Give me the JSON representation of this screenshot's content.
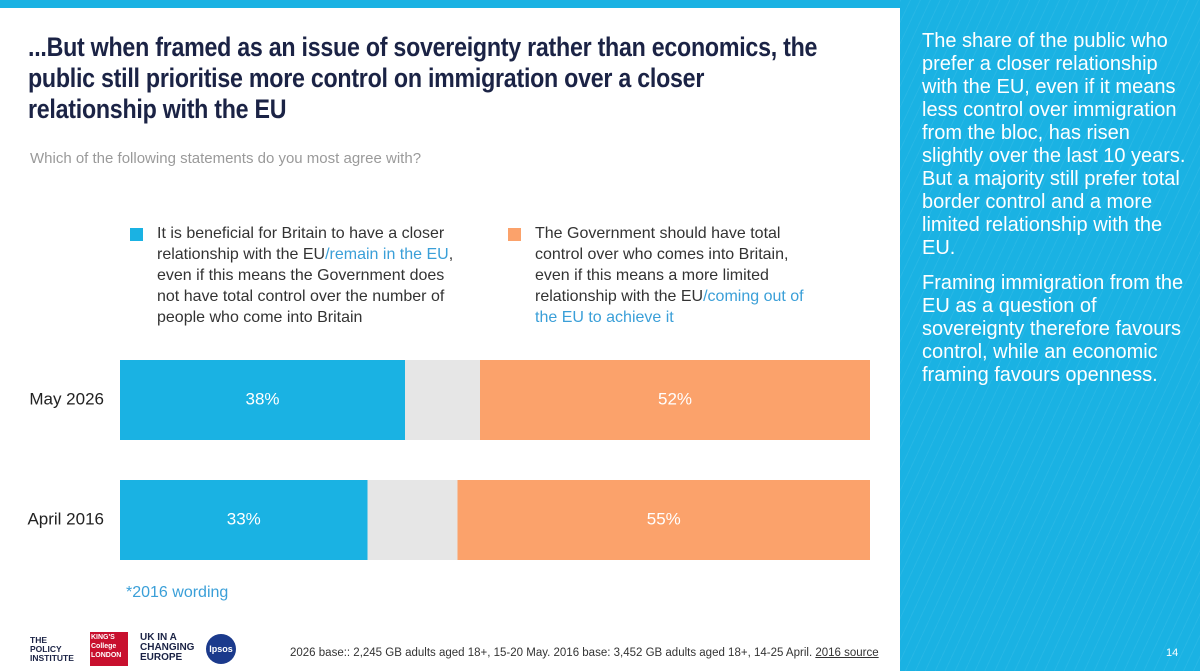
{
  "chart_data": {
    "type": "stacked-bar-horizontal",
    "title": "...But when framed as an issue of sovereignty rather than economics, the public still prioritise more control on immigration over a closer relationship with the EU",
    "subtitle": "Which of the following statements do you most agree with?",
    "categories": [
      "May 2026",
      "April 2016"
    ],
    "xlim": [
      0,
      100
    ],
    "legend_highlight_color": "#3a9fd8",
    "series": [
      {
        "name": [
          "It is beneficial for Britain to have a closer relationship with the EU",
          "/remain in the EU",
          ", even if this means the Government does not have total control over the number of people who come into Britain"
        ],
        "color": "#1ab2e3",
        "values": [
          38,
          33
        ],
        "value_labels": [
          "38%",
          "33%"
        ]
      },
      {
        "color": "#e6e6e6",
        "values": [
          10,
          12
        ]
      },
      {
        "name": [
          "The Government should have total control over who comes into Britain, even if this means a more limited relationship with the EU",
          "/coming out of the EU to achieve it"
        ],
        "color": "#fba26b",
        "values": [
          52,
          55
        ],
        "value_labels": [
          "52%",
          "55%"
        ]
      }
    ],
    "note": "*2016 wording"
  },
  "sidebar": {
    "paragraphs": [
      "The share of the public who prefer a closer relationship with the EU, even if it means less control over immigration from the bloc, has risen slightly over the last 10 years. But a majority still prefer total border control and a more limited relationship with the EU.",
      "Framing immigration from the EU as a question of sovereignty therefore favours control, while an economic framing favours openness."
    ]
  },
  "footer": {
    "base": "2026 base:: 2,245 GB adults aged 18+, 15-20 May. 2016 base: 3,452 GB adults aged 18+, 14-25 April.",
    "source_link": "2016 source",
    "page_number": "14",
    "logos": [
      "THE POLICY INSTITUTE",
      "KING'S College LONDON",
      "UK IN A CHANGING EUROPE",
      "Ipsos"
    ]
  }
}
